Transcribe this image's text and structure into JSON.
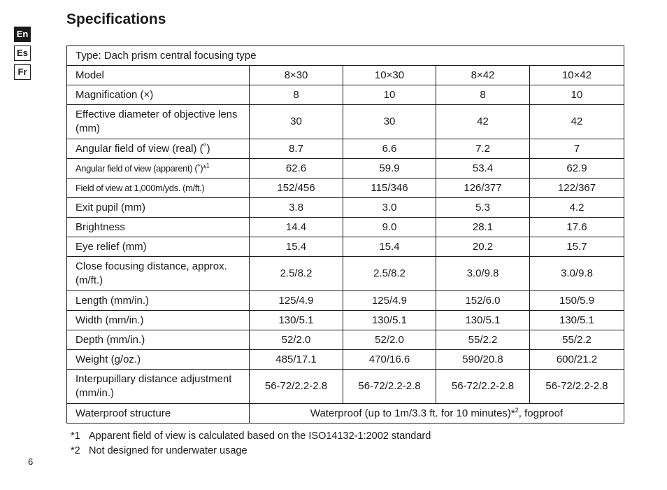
{
  "page": {
    "title": "Specifications",
    "page_number": "6"
  },
  "languages": [
    "En",
    "Es",
    "Fr"
  ],
  "active_language": "En",
  "table": {
    "type_row": "Type: Dach prism central focusing type",
    "header": {
      "label": "Model",
      "models": [
        "8×30",
        "10×30",
        "8×42",
        "10×42"
      ]
    },
    "rows": [
      {
        "label": "Magnification (×)",
        "values": [
          "8",
          "10",
          "8",
          "10"
        ]
      },
      {
        "label": "Effective diameter of objective lens (mm)",
        "values": [
          "30",
          "30",
          "42",
          "42"
        ]
      },
      {
        "label": "Angular field of view (real) (˚)",
        "values": [
          "8.7",
          "6.6",
          "7.2",
          "7"
        ]
      },
      {
        "label": "Angular field of view (apparent) (˚)*",
        "label_sup": "1",
        "values": [
          "62.6",
          "59.9",
          "53.4",
          "62.9"
        ]
      },
      {
        "label": "Field of view at 1,000m/yds. (m/ft.)",
        "values": [
          "152/456",
          "115/346",
          "126/377",
          "122/367"
        ]
      },
      {
        "label": "Exit pupil (mm)",
        "values": [
          "3.8",
          "3.0",
          "5.3",
          "4.2"
        ]
      },
      {
        "label": "Brightness",
        "values": [
          "14.4",
          "9.0",
          "28.1",
          "17.6"
        ]
      },
      {
        "label": "Eye relief (mm)",
        "values": [
          "15.4",
          "15.4",
          "20.2",
          "15.7"
        ]
      },
      {
        "label": "Close focusing distance, approx. (m/ft.)",
        "values": [
          "2.5/8.2",
          "2.5/8.2",
          "3.0/9.8",
          "3.0/9.8"
        ]
      },
      {
        "label": "Length (mm/in.)",
        "values": [
          "125/4.9",
          "125/4.9",
          "152/6.0",
          "150/5.9"
        ]
      },
      {
        "label": "Width (mm/in.)",
        "values": [
          "130/5.1",
          "130/5.1",
          "130/5.1",
          "130/5.1"
        ]
      },
      {
        "label": "Depth (mm/in.)",
        "values": [
          "52/2.0",
          "52/2.0",
          "55/2.2",
          "55/2.2"
        ]
      },
      {
        "label": "Weight (g/oz.)",
        "values": [
          "485/17.1",
          "470/16.6",
          "590/20.8",
          "600/21.2"
        ]
      },
      {
        "label": "Interpupillary distance adjustment (mm/in.)",
        "values": [
          "56-72/2.2-2.8",
          "56-72/2.2-2.8",
          "56-72/2.2-2.8",
          "56-72/2.2-2.8"
        ]
      }
    ],
    "waterproof": {
      "label": "Waterproof structure",
      "value_before": "Waterproof (up to 1m/3.3 ft. for 10 minutes)*",
      "value_sup": "2",
      "value_after": ", fogproof"
    }
  },
  "footnotes": [
    {
      "mark": "*1",
      "text": "Apparent field of view is calculated based on the ISO14132-1:2002 standard"
    },
    {
      "mark": "*2",
      "text": "Not designed for underwater usage"
    }
  ]
}
